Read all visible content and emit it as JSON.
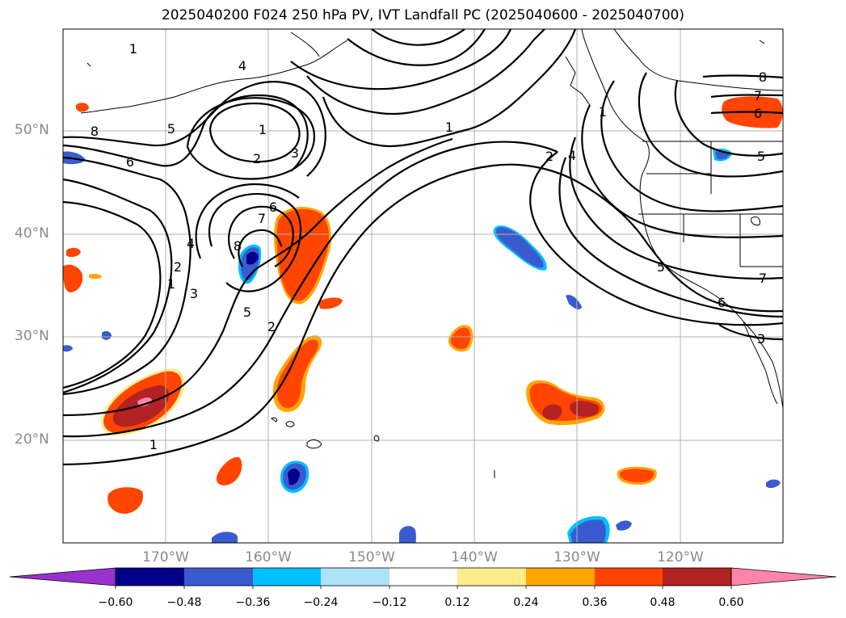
{
  "title": "2025040200 F024 250 hPa PV, IVT Landfall PC (2025040600 - 2025040700)",
  "lat_labels": [
    "50°N",
    "40°N",
    "30°N",
    "20°N"
  ],
  "lon_labels": [
    "170°W",
    "160°W",
    "150°W",
    "140°W",
    "130°W",
    "120°W"
  ],
  "contour_labels": [
    "1",
    "4",
    "5",
    "8",
    "6",
    "1",
    "2",
    "3",
    "6",
    "7",
    "4",
    "2",
    "1",
    "3",
    "8",
    "5",
    "2",
    "1",
    "1",
    "2",
    "4",
    "8",
    "7",
    "6",
    "5",
    "5",
    "7",
    "6",
    "3",
    "1"
  ],
  "colorbar": {
    "ticks": [
      "−0.60",
      "−0.48",
      "−0.36",
      "−0.24",
      "−0.12",
      "0.12",
      "0.24",
      "0.36",
      "0.48",
      "0.60"
    ],
    "colors": [
      "#9932cc",
      "#00008b",
      "#3a5bd0",
      "#00bfff",
      "#aee3f7",
      "#ffffff",
      "#ffec8b",
      "#ffa500",
      "#ff4500",
      "#b22222",
      "#ff85a8"
    ]
  },
  "colors": {
    "coast": "#000000",
    "grid": "#b0b0b0",
    "contour": "#000000"
  }
}
